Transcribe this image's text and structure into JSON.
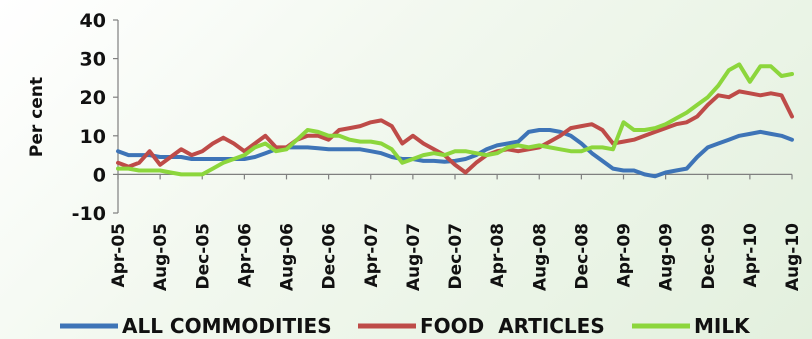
{
  "chart_data": {
    "type": "line",
    "title": "",
    "xlabel": "",
    "ylabel": "Per cent",
    "ylim": [
      -10,
      40
    ],
    "yticks": [
      -10,
      0,
      10,
      20,
      30,
      40
    ],
    "grid": false,
    "legend_position": "bottom",
    "x_ticks": [
      "Apr-05",
      "Aug-05",
      "Dec-05",
      "Apr-06",
      "Aug-06",
      "Dec-06",
      "Apr-07",
      "Aug-07",
      "Dec-07",
      "Apr-08",
      "Aug-08",
      "Dec-08",
      "Apr-09",
      "Aug-09",
      "Dec-09",
      "Apr-10",
      "Aug-10"
    ],
    "x": [
      "Apr-05",
      "May-05",
      "Jun-05",
      "Jul-05",
      "Aug-05",
      "Sep-05",
      "Oct-05",
      "Nov-05",
      "Dec-05",
      "Jan-06",
      "Feb-06",
      "Mar-06",
      "Apr-06",
      "May-06",
      "Jun-06",
      "Jul-06",
      "Aug-06",
      "Sep-06",
      "Oct-06",
      "Nov-06",
      "Dec-06",
      "Jan-07",
      "Feb-07",
      "Mar-07",
      "Apr-07",
      "May-07",
      "Jun-07",
      "Jul-07",
      "Aug-07",
      "Sep-07",
      "Oct-07",
      "Nov-07",
      "Dec-07",
      "Jan-08",
      "Feb-08",
      "Mar-08",
      "Apr-08",
      "May-08",
      "Jun-08",
      "Jul-08",
      "Aug-08",
      "Sep-08",
      "Oct-08",
      "Nov-08",
      "Dec-08",
      "Jan-09",
      "Feb-09",
      "Mar-09",
      "Apr-09",
      "May-09",
      "Jun-09",
      "Jul-09",
      "Aug-09",
      "Sep-09",
      "Oct-09",
      "Nov-09",
      "Dec-09",
      "Jan-10",
      "Feb-10",
      "Mar-10",
      "Apr-10",
      "May-10",
      "Jun-10",
      "Jul-10",
      "Aug-10"
    ],
    "series": [
      {
        "name": "ALL COMMODITIES",
        "color": "#3e74b7",
        "values": [
          6,
          5,
          5,
          5,
          4.5,
          4.5,
          4.5,
          4,
          4,
          4,
          4,
          4,
          4,
          4.5,
          5.5,
          6.5,
          7,
          7,
          7,
          6.8,
          6.5,
          6.5,
          6.5,
          6.5,
          6,
          5.5,
          4.5,
          4,
          4,
          3.5,
          3.5,
          3.3,
          3.5,
          4,
          5,
          6.5,
          7.5,
          8,
          8.5,
          11,
          11.5,
          11.5,
          11,
          10,
          8,
          5.5,
          3.5,
          1.5,
          1,
          1,
          0,
          -0.5,
          0.5,
          1,
          1.5,
          4.5,
          7,
          8,
          9,
          10,
          10.5,
          11,
          10.5,
          10,
          9
        ]
      },
      {
        "name": "FOOD  ARTICLES",
        "color": "#be4b48",
        "values": [
          3,
          2,
          3,
          6,
          2.5,
          4.5,
          6.5,
          5,
          6,
          8,
          9.5,
          8,
          6,
          8,
          10,
          7,
          7,
          9,
          10,
          10,
          9,
          11.5,
          12,
          12.5,
          13.5,
          14,
          12.5,
          8,
          10,
          8,
          6.5,
          5,
          2.5,
          0.5,
          3,
          5,
          6,
          6.5,
          6,
          6.5,
          7,
          8.5,
          10,
          12,
          12.5,
          13,
          11.5,
          8,
          8.5,
          9,
          10,
          11,
          12,
          13,
          13.5,
          15,
          18,
          20.5,
          20,
          21.5,
          21,
          20.5,
          21,
          20.5,
          15
        ]
      },
      {
        "name": "MILK",
        "color": "#8cd63c",
        "values": [
          1.5,
          1.5,
          1,
          1,
          1,
          0.5,
          0,
          0,
          0,
          1.5,
          3,
          4,
          5,
          7,
          8,
          6,
          6.5,
          9,
          11.5,
          11,
          10,
          10,
          9,
          8.5,
          8.5,
          8,
          6.5,
          3,
          4,
          5,
          5.5,
          5,
          6,
          6,
          5.5,
          5,
          5.5,
          7,
          7.5,
          7,
          7.5,
          7,
          6.5,
          6,
          6,
          7,
          7,
          6.5,
          13.5,
          11.5,
          11.5,
          12,
          13,
          14.5,
          16,
          18,
          20,
          23,
          27,
          28.5,
          24,
          28,
          28,
          25.5,
          26
        ]
      }
    ]
  }
}
